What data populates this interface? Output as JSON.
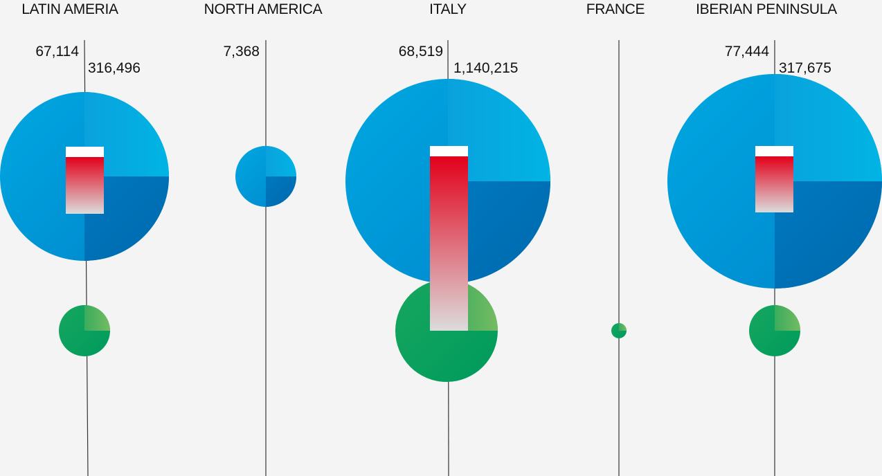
{
  "chart_data": {
    "type": "bubble",
    "title": "",
    "categories": [
      "LATIN AMERIA",
      "NORTH AMERICA",
      "ITALY",
      "FRANCE",
      "IBERIAN PENINSULA"
    ],
    "series": [
      {
        "name": "blue circles",
        "values": [
          316496,
          7368,
          1140215,
          null,
          317675
        ],
        "labels": [
          "316,496",
          "7,368",
          "1,140,215",
          "",
          "317,675"
        ]
      },
      {
        "name": "bar value",
        "values": [
          67114,
          null,
          68519,
          null,
          77444
        ],
        "labels": [
          "67,114",
          "",
          "68,519",
          "",
          "77,444"
        ]
      },
      {
        "name": "green circles",
        "values": [
          null,
          null,
          null,
          null,
          null
        ]
      }
    ]
  },
  "colors": {
    "background": "#f4f4f4",
    "blue_light": "#00b0e0",
    "blue_mid": "#0096d6",
    "blue_dark": "#006db3",
    "green_light": "#6ab85c",
    "green_dark": "#00a15f",
    "red_top": "#e2001a",
    "red_bottom": "#dcdcdc",
    "line": "#333333"
  }
}
